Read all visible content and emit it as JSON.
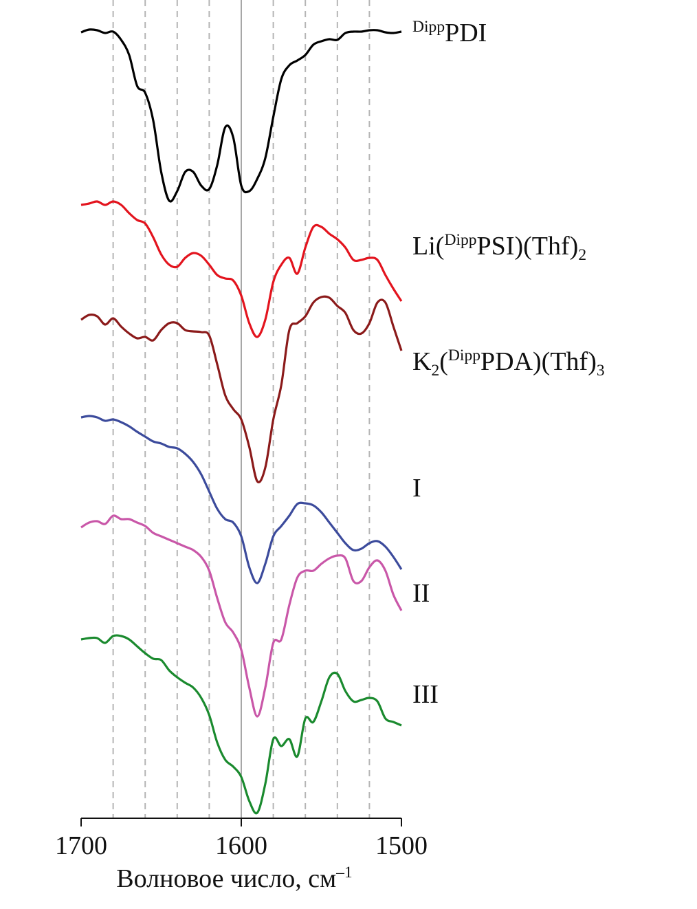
{
  "chart_data": {
    "type": "line",
    "x_label": [
      {
        "text": "Волновое число, см"
      },
      {
        "text": "–1",
        "pos": "sup"
      }
    ],
    "xlim": [
      1700,
      1500
    ],
    "xticks": [
      1700,
      1600,
      1500
    ],
    "xgrid": [
      1680,
      1660,
      1640,
      1620,
      1580,
      1560,
      1540,
      1520
    ],
    "reference_line": 1600,
    "ylim": [
      0,
      116
    ],
    "x": [
      1700,
      1695,
      1690,
      1685,
      1680,
      1675,
      1670,
      1665,
      1660,
      1655,
      1650,
      1645,
      1640,
      1635,
      1630,
      1625,
      1620,
      1615,
      1610,
      1605,
      1600,
      1595,
      1590,
      1585,
      1580,
      1575,
      1570,
      1565,
      1560,
      1555,
      1550,
      1545,
      1540,
      1535,
      1530,
      1525,
      1520,
      1515,
      1510,
      1505,
      1500
    ],
    "series": [
      {
        "name": [
          {
            "text": "Dipp",
            "pos": "sup"
          },
          {
            "text": "PDI"
          }
        ],
        "color": "#000000",
        "values": [
          114.3,
          114.7,
          114.6,
          114.2,
          114.4,
          113.2,
          111,
          106.5,
          105.5,
          101.5,
          94,
          89.8,
          91.2,
          94,
          94,
          92,
          91.5,
          95,
          100.5,
          99,
          92,
          91.2,
          93,
          96,
          102,
          107.5,
          109.5,
          110.2,
          111,
          112.5,
          113,
          113.3,
          113.2,
          114.2,
          114.4,
          114.4,
          114.6,
          114.6,
          114.3,
          114.2,
          114.4
        ]
      },
      {
        "name": [
          {
            "text": "Li("
          },
          {
            "text": "Dipp",
            "pos": "sup"
          },
          {
            "text": "PSI)(Thf)"
          },
          {
            "text": "2",
            "pos": "sub"
          }
        ],
        "color": "#e3141e",
        "values": [
          89.2,
          89.4,
          89.7,
          89.2,
          89.7,
          89.2,
          88,
          87,
          86.5,
          84.5,
          82,
          80.5,
          80.2,
          81.5,
          82.2,
          81.8,
          80.5,
          79,
          78.5,
          78.2,
          76,
          72,
          70,
          72.5,
          78,
          80.5,
          81.5,
          79.2,
          83,
          86,
          86,
          85,
          84.2,
          83,
          81.2,
          81.2,
          81.5,
          81.2,
          79,
          77,
          75.2
        ]
      },
      {
        "name": [
          {
            "text": "K"
          },
          {
            "text": "2",
            "pos": "sub"
          },
          {
            "text": "("
          },
          {
            "text": "Dipp",
            "pos": "sup"
          },
          {
            "text": "PDA)(Thf)"
          },
          {
            "text": "3",
            "pos": "sub"
          }
        ],
        "color": "#8b1a1a",
        "values": [
          72.5,
          73.2,
          73,
          71.8,
          72.7,
          71.5,
          70.5,
          69.8,
          70,
          69.5,
          71,
          72,
          72,
          71,
          70.8,
          70.7,
          70.2,
          66,
          61.5,
          59.5,
          58,
          54,
          49,
          51,
          58,
          63,
          71,
          72,
          73,
          75,
          75.8,
          75.7,
          74.5,
          73.5,
          71,
          70.5,
          72,
          75,
          75,
          71.5,
          68
        ]
      },
      {
        "name": [
          {
            "text": "I"
          }
        ],
        "color": "#3c4b9c",
        "values": [
          58.3,
          58.5,
          58.3,
          57.8,
          58,
          57.6,
          57,
          56.2,
          55.5,
          54.8,
          54.5,
          54,
          53.8,
          53,
          51.8,
          50,
          47.5,
          45,
          43.5,
          43,
          41,
          36.5,
          34.2,
          37,
          41,
          42.5,
          44,
          45.7,
          45.8,
          45.5,
          44.5,
          43,
          41.5,
          40,
          39,
          39.2,
          40,
          40.3,
          39.5,
          38,
          36.2
        ]
      },
      {
        "name": [
          {
            "text": "II"
          }
        ],
        "color": "#c957a8",
        "values": [
          42.3,
          43,
          43.2,
          42.8,
          44,
          43.5,
          43.5,
          43,
          42.5,
          41.5,
          41,
          40.5,
          40,
          39.5,
          39,
          38,
          36,
          32,
          28.5,
          27,
          24.5,
          19,
          14.8,
          19,
          25.5,
          26,
          31,
          35,
          36,
          36,
          37,
          37.8,
          38.2,
          37.8,
          34.5,
          34.5,
          36.5,
          37.5,
          36,
          32.5,
          30.2
        ]
      },
      {
        "name": [
          {
            "text": "III"
          }
        ],
        "color": "#1a8a2e",
        "values": [
          26,
          26.2,
          26.2,
          25.5,
          26.5,
          26.5,
          26,
          25,
          24,
          23.2,
          23,
          21.5,
          20.5,
          19.7,
          19,
          17.5,
          15,
          11,
          8.5,
          7.5,
          6,
          2.5,
          0.8,
          5,
          11.5,
          10.5,
          11.5,
          9,
          14.5,
          14,
          17,
          20.5,
          21,
          18.5,
          17,
          17.2,
          17.5,
          17,
          14.5,
          14,
          13.5
        ]
      }
    ]
  }
}
